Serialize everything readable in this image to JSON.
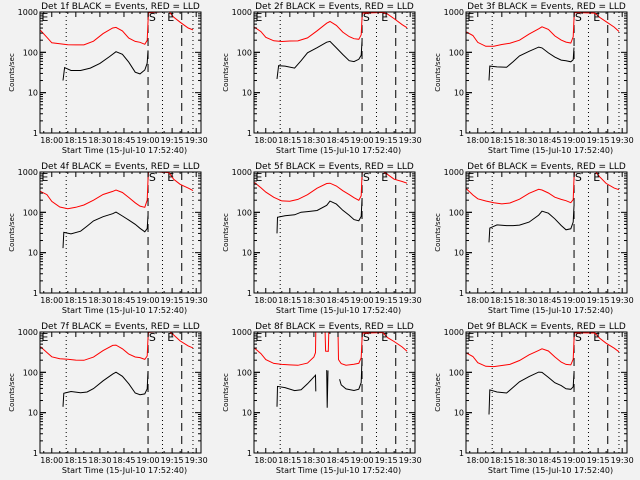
{
  "background": "#f2f2f2",
  "colors": {
    "events": "#000000",
    "lld": "#ff0000",
    "frame": "#000000"
  },
  "chart_data": {
    "type": "line",
    "layout": "3x3 grid of panels",
    "start_time_label": "Start Time (15-Jul-10 17:52:40)",
    "x_range_minutes_after_1800": [
      -7.33,
      93
    ],
    "x_ticks": [
      "18:00",
      "18:15",
      "18:30",
      "18:45",
      "19:00",
      "19:15",
      "19:30"
    ],
    "x_tick_minutes": [
      0,
      15,
      30,
      45,
      60,
      75,
      90
    ],
    "y_scale": "log",
    "y_range": [
      1,
      1000
    ],
    "y_ticks": [
      "1",
      "10",
      "100",
      "1000"
    ],
    "y_label": "Counts/sec",
    "markers": {
      "dotted_minutes": [
        9,
        69,
        88
      ],
      "dashed_minutes": [
        60,
        81
      ],
      "letters": [
        {
          "text": "E",
          "minute": -6.5
        },
        {
          "text": "S",
          "minute": 60.5
        },
        {
          "text": "E",
          "minute": 72
        }
      ]
    },
    "panels": [
      {
        "title": "Det 1f BLACK = Events, RED = LLD",
        "series": [
          {
            "name": "Events",
            "color": "#000000",
            "x": [
              7,
              8,
              12,
              18,
              24,
              30,
              36,
              40,
              44,
              48,
              52,
              55,
              58,
              59.5,
              60
            ],
            "y": [
              20,
              38,
              32,
              35,
              45,
              60,
              80,
              95,
              80,
              55,
              35,
              33,
              38,
              50,
              100
            ]
          },
          {
            "name": "LLD",
            "color": "#ff0000",
            "x": [
              -7,
              -3,
              0,
              5,
              10,
              15,
              20,
              26,
              32,
              38,
              40,
              44,
              48,
              52,
              55,
              58,
              59.5,
              60,
              60.3,
              73,
              76,
              80,
              85,
              88
            ],
            "y": [
              350,
              250,
              180,
              160,
              145,
              150,
              160,
              200,
              290,
              380,
              400,
              350,
              240,
              190,
              170,
              150,
              200,
              600,
              1000,
              1000,
              700,
              550,
              420,
              380
            ]
          }
        ]
      },
      {
        "title": "Det 2f BLACK = Events, RED = LLD",
        "series": [
          {
            "name": "Events",
            "color": "#000000",
            "x": [
              7,
              8,
              12,
              18,
              22,
              26,
              32,
              38,
              40,
              44,
              48,
              52,
              55,
              58,
              59.5,
              60
            ],
            "y": [
              22,
              42,
              45,
              45,
              70,
              100,
              120,
              160,
              180,
              140,
              100,
              65,
              55,
              60,
              80,
              200
            ]
          },
          {
            "name": "LLD",
            "color": "#ff0000",
            "x": [
              -7,
              -3,
              0,
              5,
              10,
              15,
              20,
              26,
              32,
              38,
              40,
              44,
              48,
              52,
              55,
              58,
              59.5,
              60,
              60.3,
              73,
              76,
              80,
              85,
              88
            ],
            "y": [
              420,
              330,
              250,
              200,
              180,
              180,
              190,
              240,
              360,
              520,
              550,
              450,
              330,
              260,
              220,
              200,
              260,
              700,
              1000,
              1000,
              850,
              650,
              480,
              430
            ]
          }
        ]
      },
      {
        "title": "Det 3f BLACK = Events, RED = LLD",
        "series": [
          {
            "name": "Events",
            "color": "#000000",
            "x": [
              7,
              7.5,
              12,
              18,
              22,
              26,
              32,
              38,
              40,
              44,
              48,
              52,
              55,
              58,
              59.5,
              60
            ],
            "y": [
              20,
              45,
              48,
              48,
              60,
              75,
              95,
              130,
              140,
              110,
              80,
              60,
              55,
              55,
              70,
              150
            ]
          },
          {
            "name": "LLD",
            "color": "#ff0000",
            "x": [
              -7,
              -3,
              0,
              5,
              10,
              15,
              20,
              26,
              32,
              38,
              40,
              44,
              48,
              52,
              55,
              58,
              59.5,
              60,
              60.3,
              73,
              76,
              80,
              85,
              88
            ],
            "y": [
              320,
              250,
              180,
              150,
              145,
              150,
              160,
              200,
              300,
              400,
              420,
              350,
              250,
              210,
              190,
              170,
              230,
              650,
              1000,
              1000,
              750,
              550,
              400,
              330
            ]
          }
        ]
      },
      {
        "title": "Det 4f BLACK = Events, RED = LLD",
        "series": [
          {
            "name": "Events",
            "color": "#000000",
            "x": [
              7,
              7.5,
              12,
              18,
              22,
              26,
              32,
              38,
              40,
              44,
              48,
              52,
              55,
              58,
              59.5,
              60
            ],
            "y": [
              13,
              35,
              33,
              35,
              42,
              55,
              75,
              100,
              115,
              85,
              60,
              45,
              38,
              35,
              45,
              90
            ]
          },
          {
            "name": "LLD",
            "color": "#ff0000",
            "x": [
              -7,
              -3,
              0,
              5,
              10,
              15,
              20,
              26,
              32,
              38,
              40,
              44,
              48,
              52,
              55,
              58,
              59.5,
              60,
              60.3,
              73,
              76,
              80,
              85,
              88
            ],
            "y": [
              330,
              260,
              180,
              140,
              130,
              135,
              145,
              190,
              280,
              350,
              370,
              300,
              220,
              170,
              150,
              140,
              200,
              600,
              1000,
              1000,
              700,
              500,
              380,
              330
            ]
          }
        ]
      },
      {
        "title": "Det 5f BLACK = Events, RED = LLD",
        "series": [
          {
            "name": "Events",
            "color": "#000000",
            "x": [
              7,
              7.3,
              12,
              18,
              22,
              26,
              32,
              38,
              40,
              44,
              48,
              52,
              55,
              58,
              59.5,
              60
            ],
            "y": [
              30,
              85,
              85,
              80,
              90,
              100,
              120,
              170,
              200,
              150,
              100,
              80,
              70,
              70,
              85,
              200
            ]
          },
          {
            "name": "LLD",
            "color": "#ff0000",
            "x": [
              -7,
              -3,
              0,
              5,
              10,
              15,
              20,
              26,
              32,
              38,
              40,
              44,
              48,
              52,
              55,
              58,
              59.5,
              60,
              60.3,
              73,
              76,
              80,
              85,
              88
            ],
            "y": [
              550,
              400,
              300,
              230,
              200,
              200,
              210,
              260,
              380,
              530,
              560,
              460,
              330,
              260,
              230,
              210,
              270,
              800,
              1000,
              1000,
              900,
              700,
              580,
              500
            ]
          }
        ]
      },
      {
        "title": "Det 6f BLACK = Events, RED = LLD",
        "series": [
          {
            "name": "Events",
            "color": "#000000",
            "x": [
              7,
              7.5,
              12,
              18,
              22,
              26,
              32,
              38,
              40,
              44,
              48,
              52,
              55,
              58,
              59.5,
              60
            ],
            "y": [
              18,
              42,
              45,
              42,
              45,
              52,
              65,
              90,
              100,
              85,
              65,
              50,
              42,
              42,
              55,
              130
            ]
          },
          {
            "name": "LLD",
            "color": "#ff0000",
            "x": [
              -7,
              -3,
              0,
              5,
              10,
              15,
              20,
              26,
              32,
              38,
              40,
              44,
              48,
              52,
              55,
              58,
              59.5,
              60,
              60.3,
              73,
              76,
              80,
              85,
              88
            ],
            "y": [
              380,
              280,
              210,
              180,
              170,
              170,
              180,
              210,
              280,
              360,
              370,
              320,
              240,
              200,
              185,
              175,
              220,
              700,
              1000,
              1000,
              750,
              550,
              420,
              360
            ]
          }
        ]
      },
      {
        "title": "Det 7f BLACK = Events, RED = LLD",
        "series": [
          {
            "name": "Events",
            "color": "#000000",
            "x": [
              7,
              7.5,
              12,
              18,
              22,
              26,
              32,
              38,
              40,
              44,
              48,
              52,
              55,
              58,
              59.5,
              60
            ],
            "y": [
              14,
              28,
              30,
              30,
              35,
              45,
              65,
              85,
              90,
              75,
              55,
              35,
              30,
              28,
              35,
              100
            ]
          },
          {
            "name": "LLD",
            "color": "#ff0000",
            "x": [
              -7,
              -3,
              0,
              5,
              10,
              15,
              20,
              26,
              32,
              38,
              40,
              44,
              48,
              52,
              55,
              58,
              59.5,
              60,
              60.3,
              73,
              76,
              80,
              85,
              88
            ],
            "y": [
              430,
              330,
              250,
              210,
              200,
              200,
              210,
              250,
              340,
              440,
              460,
              400,
              300,
              240,
              220,
              200,
              260,
              750,
              1000,
              1000,
              800,
              600,
              480,
              420
            ]
          }
        ]
      },
      {
        "title": "Det 8f BLACK = Events, RED = LLD",
        "series": [
          {
            "name": "Events",
            "color": "#000000",
            "x": [
              7,
              7.3,
              12,
              18,
              22,
              26,
              31,
              31.2,
              null,
              38,
              38.3,
              38.8,
              null,
              46,
              47,
              50,
              55,
              58,
              59.5,
              60
            ],
            "y": [
              14,
              40,
              40,
              38,
              42,
              55,
              80,
              30,
              null,
              120,
              15,
              120,
              null,
              60,
              45,
              40,
              40,
              42,
              55,
              200
            ]
          },
          {
            "name": "LLD",
            "color": "#ff0000",
            "x": [
              -7,
              -3,
              0,
              5,
              10,
              15,
              20,
              26,
              30,
              31,
              31.2,
              37,
              37.3,
              39,
              39.3,
              45,
              45.3,
              47,
              50,
              55,
              58,
              59.5,
              60,
              60.3,
              73,
              76,
              80,
              85,
              88
            ],
            "y": [
              400,
              300,
              220,
              170,
              150,
              145,
              150,
              180,
              250,
              300,
              1000,
              1000,
              350,
              350,
              1000,
              1000,
              200,
              170,
              160,
              160,
              160,
              220,
              650,
              1000,
              1000,
              700,
              550,
              420,
              350
            ]
          }
        ]
      },
      {
        "title": "Det 9f BLACK = Events, RED = LLD",
        "series": [
          {
            "name": "Events",
            "color": "#000000",
            "x": [
              7,
              7.5,
              12,
              18,
              22,
              26,
              32,
              38,
              40,
              44,
              48,
              52,
              55,
              58,
              59.5,
              60
            ],
            "y": [
              9,
              35,
              35,
              35,
              45,
              55,
              70,
              95,
              105,
              85,
              60,
              45,
              35,
              35,
              45,
              110
            ]
          },
          {
            "name": "LLD",
            "color": "#ff0000",
            "x": [
              -7,
              -3,
              0,
              5,
              10,
              15,
              20,
              26,
              32,
              38,
              40,
              44,
              48,
              52,
              55,
              58,
              59.5,
              60,
              60.3,
              73,
              76,
              80,
              85,
              88
            ],
            "y": [
              300,
              240,
              180,
              150,
              140,
              140,
              150,
              200,
              290,
              360,
              370,
              320,
              240,
              190,
              165,
              150,
              200,
              600,
              1000,
              1000,
              700,
              500,
              380,
              330
            ]
          }
        ]
      }
    ]
  }
}
